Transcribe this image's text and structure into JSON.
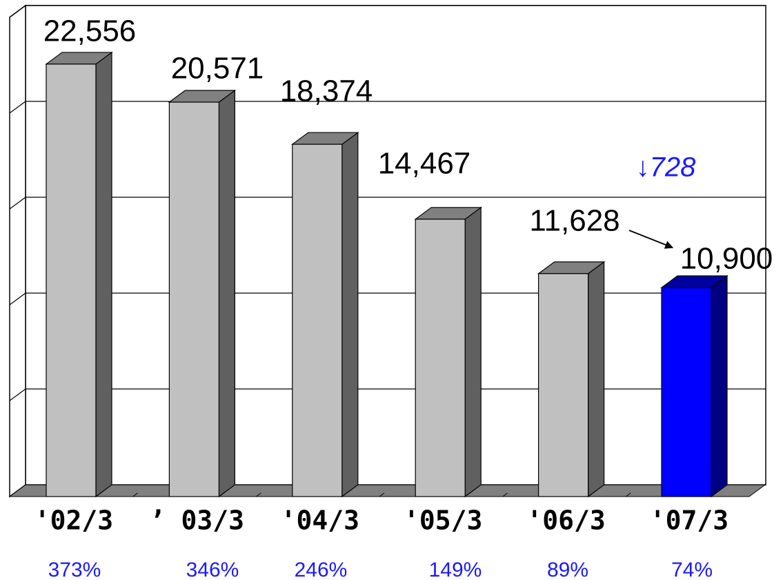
{
  "chart_data": {
    "type": "bar",
    "categories": [
      "'02/3",
      "’ 03/3",
      "'04/3",
      "'05/3",
      "'06/3",
      "'07/3"
    ],
    "values": [
      22556,
      20571,
      18374,
      14467,
      11628,
      10900
    ],
    "value_labels": [
      "22,556",
      "20,571",
      "18,374",
      "14,467",
      "11,628",
      "10,900"
    ],
    "colors": [
      "#c0c0c0",
      "#c0c0c0",
      "#c0c0c0",
      "#c0c0c0",
      "#c0c0c0",
      "#0000ff"
    ],
    "ylim": [
      0,
      25000
    ],
    "yticks": [
      0,
      5000,
      10000,
      15000,
      20000,
      25000
    ],
    "grid": true,
    "annotation": "↓728",
    "ratio": {
      "values": [
        373,
        346,
        246,
        149,
        89,
        74
      ],
      "value_labels": [
        "373%",
        "346%",
        "246%",
        "149%",
        "89%",
        "74%"
      ]
    }
  }
}
